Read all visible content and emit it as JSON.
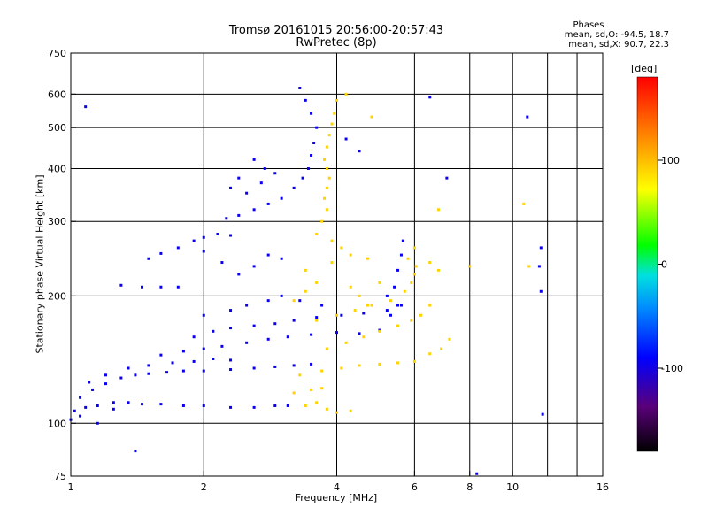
{
  "chart_data": {
    "type": "scatter",
    "title": "Tromsø 20161015 20:56:00-20:57:43",
    "subtitle": "RwPretec (8p)",
    "xlabel": "Frequency [MHz]",
    "ylabel": "Stationary phase Virtual Height [km]",
    "xscale": "log",
    "yscale": "log",
    "xlim": [
      1,
      16
    ],
    "ylim": [
      75,
      750
    ],
    "xticks": [
      1,
      2,
      4,
      6,
      8,
      10,
      16
    ],
    "yticks": [
      75,
      100,
      200,
      300,
      400,
      500,
      600,
      750
    ],
    "grid": true,
    "colorbar": {
      "label": "[deg]",
      "range": [
        -180,
        180
      ],
      "ticks": [
        -100,
        0,
        100
      ]
    },
    "stats": {
      "heading": "Phases",
      "line1": "mean, sd,O: -94.5, 18.7",
      "line2": "mean, sd,X: 90.7, 22.3"
    },
    "series": [
      {
        "name": "O",
        "color_value": -95,
        "points": [
          [
            1.02,
            107
          ],
          [
            1.08,
            109
          ],
          [
            1.15,
            110
          ],
          [
            1.25,
            112
          ],
          [
            1.35,
            112
          ],
          [
            1.45,
            111
          ],
          [
            1.6,
            111
          ],
          [
            1.8,
            110
          ],
          [
            2.0,
            110
          ],
          [
            2.3,
            109
          ],
          [
            2.6,
            109
          ],
          [
            2.9,
            110
          ],
          [
            3.1,
            110
          ],
          [
            1.05,
            115
          ],
          [
            1.12,
            120
          ],
          [
            1.2,
            124
          ],
          [
            1.3,
            128
          ],
          [
            1.4,
            130
          ],
          [
            1.5,
            131
          ],
          [
            1.65,
            132
          ],
          [
            1.8,
            133
          ],
          [
            2.0,
            133
          ],
          [
            2.3,
            134
          ],
          [
            2.6,
            135
          ],
          [
            2.9,
            136
          ],
          [
            3.2,
            137
          ],
          [
            3.5,
            138
          ],
          [
            1.1,
            125
          ],
          [
            1.2,
            130
          ],
          [
            1.35,
            135
          ],
          [
            1.5,
            137
          ],
          [
            1.7,
            139
          ],
          [
            1.9,
            140
          ],
          [
            2.1,
            142
          ],
          [
            2.3,
            141
          ],
          [
            1.6,
            145
          ],
          [
            1.8,
            148
          ],
          [
            2.0,
            150
          ],
          [
            2.2,
            152
          ],
          [
            2.5,
            155
          ],
          [
            2.8,
            158
          ],
          [
            3.1,
            160
          ],
          [
            3.5,
            162
          ],
          [
            4.0,
            164
          ],
          [
            4.5,
            163
          ],
          [
            5.0,
            166
          ],
          [
            1.9,
            160
          ],
          [
            2.1,
            165
          ],
          [
            2.3,
            168
          ],
          [
            2.6,
            170
          ],
          [
            2.9,
            172
          ],
          [
            3.2,
            175
          ],
          [
            3.6,
            178
          ],
          [
            4.1,
            180
          ],
          [
            4.6,
            182
          ],
          [
            5.2,
            185
          ],
          [
            5.6,
            190
          ],
          [
            2.0,
            180
          ],
          [
            2.3,
            185
          ],
          [
            2.5,
            190
          ],
          [
            2.8,
            195
          ],
          [
            3.0,
            200
          ],
          [
            3.3,
            195
          ],
          [
            3.7,
            190
          ],
          [
            1.45,
            210
          ],
          [
            1.6,
            210
          ],
          [
            1.75,
            210
          ],
          [
            1.3,
            212
          ],
          [
            1.5,
            245
          ],
          [
            1.6,
            252
          ],
          [
            1.75,
            260
          ],
          [
            1.9,
            270
          ],
          [
            2.0,
            275
          ],
          [
            2.15,
            280
          ],
          [
            2.3,
            278
          ],
          [
            2.0,
            255
          ],
          [
            2.2,
            240
          ],
          [
            2.4,
            225
          ],
          [
            2.6,
            235
          ],
          [
            2.8,
            250
          ],
          [
            3.0,
            245
          ],
          [
            2.25,
            305
          ],
          [
            2.4,
            310
          ],
          [
            2.6,
            320
          ],
          [
            2.8,
            330
          ],
          [
            3.0,
            340
          ],
          [
            3.2,
            360
          ],
          [
            3.35,
            380
          ],
          [
            3.45,
            400
          ],
          [
            3.5,
            430
          ],
          [
            3.55,
            460
          ],
          [
            3.6,
            500
          ],
          [
            3.5,
            540
          ],
          [
            3.4,
            580
          ],
          [
            3.3,
            620
          ],
          [
            2.5,
            350
          ],
          [
            2.7,
            370
          ],
          [
            2.75,
            400
          ],
          [
            2.9,
            390
          ],
          [
            2.6,
            420
          ],
          [
            2.4,
            380
          ],
          [
            2.3,
            360
          ],
          [
            5.2,
            200
          ],
          [
            5.4,
            210
          ],
          [
            5.5,
            230
          ],
          [
            5.6,
            250
          ],
          [
            5.65,
            270
          ],
          [
            5.5,
            190
          ],
          [
            5.3,
            180
          ],
          [
            1.0,
            102
          ],
          [
            1.05,
            104
          ],
          [
            1.15,
            100
          ],
          [
            1.25,
            108
          ],
          [
            1.4,
            86
          ],
          [
            1.08,
            560
          ],
          [
            4.2,
            470
          ],
          [
            4.5,
            440
          ],
          [
            6.5,
            590
          ],
          [
            7.1,
            380
          ],
          [
            8.3,
            76
          ],
          [
            10.8,
            530
          ],
          [
            11.7,
            105
          ],
          [
            11.6,
            260
          ],
          [
            11.5,
            235
          ],
          [
            11.6,
            205
          ]
        ]
      },
      {
        "name": "X",
        "color_value": 91,
        "points": [
          [
            3.4,
            110
          ],
          [
            3.6,
            112
          ],
          [
            3.8,
            108
          ],
          [
            4.0,
            106
          ],
          [
            4.3,
            107
          ],
          [
            3.2,
            118
          ],
          [
            3.5,
            120
          ],
          [
            3.7,
            121
          ],
          [
            3.3,
            130
          ],
          [
            3.7,
            133
          ],
          [
            4.1,
            135
          ],
          [
            4.5,
            137
          ],
          [
            5.0,
            138
          ],
          [
            5.5,
            139
          ],
          [
            6.0,
            140
          ],
          [
            6.5,
            146
          ],
          [
            6.9,
            150
          ],
          [
            7.2,
            158
          ],
          [
            3.8,
            150
          ],
          [
            4.2,
            155
          ],
          [
            4.6,
            160
          ],
          [
            5.0,
            165
          ],
          [
            5.5,
            170
          ],
          [
            5.9,
            175
          ],
          [
            6.2,
            180
          ],
          [
            6.5,
            190
          ],
          [
            3.6,
            175
          ],
          [
            4.0,
            180
          ],
          [
            4.4,
            185
          ],
          [
            4.8,
            190
          ],
          [
            5.3,
            195
          ],
          [
            5.7,
            205
          ],
          [
            5.9,
            215
          ],
          [
            6.0,
            225
          ],
          [
            6.05,
            235
          ],
          [
            3.7,
            300
          ],
          [
            3.8,
            320
          ],
          [
            3.75,
            340
          ],
          [
            3.8,
            360
          ],
          [
            3.85,
            380
          ],
          [
            3.8,
            400
          ],
          [
            3.75,
            420
          ],
          [
            3.8,
            450
          ],
          [
            3.85,
            480
          ],
          [
            3.9,
            510
          ],
          [
            3.95,
            540
          ],
          [
            4.0,
            580
          ],
          [
            3.2,
            195
          ],
          [
            3.4,
            205
          ],
          [
            3.6,
            215
          ],
          [
            3.4,
            230
          ],
          [
            3.6,
            280
          ],
          [
            3.9,
            270
          ],
          [
            4.1,
            260
          ],
          [
            4.3,
            210
          ],
          [
            4.5,
            200
          ],
          [
            4.7,
            190
          ],
          [
            5.0,
            215
          ],
          [
            5.8,
            245
          ],
          [
            6.5,
            240
          ],
          [
            6.8,
            230
          ],
          [
            6.0,
            260
          ],
          [
            3.9,
            240
          ],
          [
            4.3,
            250
          ],
          [
            4.7,
            245
          ],
          [
            6.8,
            320
          ],
          [
            8.0,
            235
          ],
          [
            10.6,
            330
          ],
          [
            10.9,
            235
          ],
          [
            4.2,
            600
          ],
          [
            4.8,
            530
          ]
        ]
      }
    ]
  }
}
